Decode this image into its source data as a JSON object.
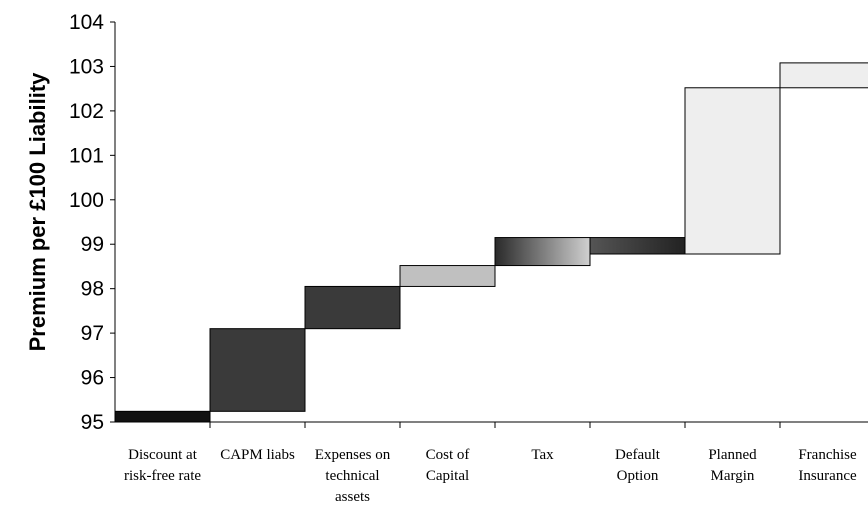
{
  "chart_data": {
    "type": "bar",
    "subtype": "waterfall",
    "ylabel": "Premium per £100 Liability",
    "xlabel": "",
    "ylim": [
      95,
      104
    ],
    "yticks": [
      "95",
      "96",
      "97",
      "98",
      "99",
      "100",
      "101",
      "102",
      "103",
      "104"
    ],
    "grid": false,
    "categories": [
      [
        "Discount at",
        "risk-free rate"
      ],
      [
        "CAPM liabs"
      ],
      [
        "Expenses on",
        "technical",
        "assets"
      ],
      [
        "Cost of",
        "Capital"
      ],
      [
        "Tax"
      ],
      [
        "Default",
        "Option"
      ],
      [
        "Planned",
        "Margin"
      ],
      [
        "Franchise",
        "Insurance"
      ]
    ],
    "segments": [
      {
        "low": 95.0,
        "high": 95.24,
        "fill": "solid",
        "color": "#111111"
      },
      {
        "low": 95.24,
        "high": 97.1,
        "fill": "solid",
        "color": "#3a3a3a"
      },
      {
        "low": 97.1,
        "high": 98.05,
        "fill": "solid",
        "color": "#3a3a3a"
      },
      {
        "low": 98.05,
        "high": 98.52,
        "fill": "solid",
        "color": "#c0c0c0"
      },
      {
        "low": 98.52,
        "high": 99.15,
        "fill": "gradient",
        "color": "#2a2a2a",
        "color2": "#d0d0d0"
      },
      {
        "low": 98.78,
        "high": 99.15,
        "fill": "gradient",
        "color": "#555555",
        "color2": "#222222"
      },
      {
        "low": 98.78,
        "high": 102.52,
        "fill": "solid",
        "color": "#eeeeee"
      },
      {
        "low": 102.52,
        "high": 103.08,
        "fill": "solid",
        "color": "#eeeeee"
      }
    ]
  }
}
